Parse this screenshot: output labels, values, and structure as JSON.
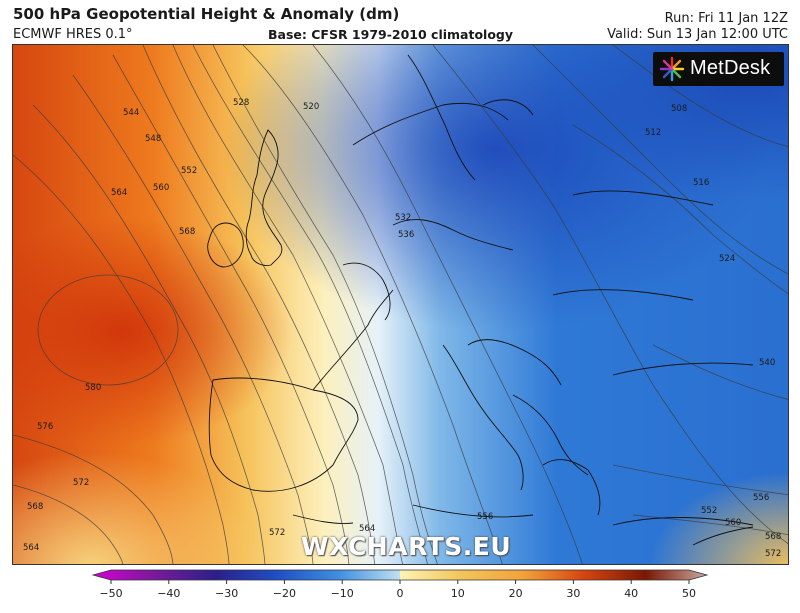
{
  "header": {
    "title": "500 hPa Geopotential Height & Anomaly (dm)",
    "model": "ECMWF HRES 0.1°",
    "base": "Base: CFSR 1979-2010 climatology",
    "run": "Run: Fri 11 Jan 12Z",
    "valid": "Valid: Sun 13 Jan 12:00 UTC"
  },
  "logo": {
    "text": "MetDesk"
  },
  "watermark": "WXCHARTS.EU",
  "map": {
    "field": "geopotential height anomaly",
    "region": "Europe and eastern North Atlantic",
    "contour_labels": [
      "544",
      "548",
      "552",
      "564",
      "560",
      "568",
      "580",
      "576",
      "572",
      "568",
      "564",
      "528",
      "520",
      "532",
      "536",
      "508",
      "512",
      "516",
      "524",
      "540",
      "556",
      "552",
      "560",
      "568",
      "572",
      "564",
      "572",
      "556"
    ]
  },
  "colorbar": {
    "ticks": [
      "−50",
      "−40",
      "−30",
      "−20",
      "−10",
      "0",
      "10",
      "20",
      "30",
      "40",
      "50"
    ],
    "min": -50,
    "max": 50,
    "colors": [
      "#d600d6",
      "#7a1a9a",
      "#2b1f8a",
      "#1f4fc7",
      "#3f8fe0",
      "#bfe0f2",
      "#fdf3b5",
      "#f3a23a",
      "#d6440f",
      "#7a1805",
      "#c8a8a0"
    ]
  }
}
